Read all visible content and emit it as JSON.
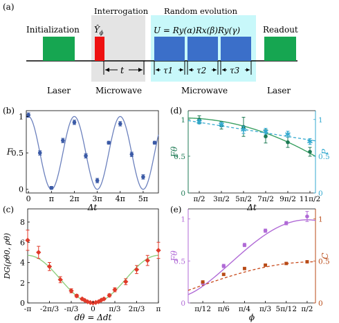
{
  "panel_a": {
    "label": "(a)",
    "blocks": {
      "initialization": "Initialization",
      "interrogation": "Interrogation",
      "random_evolution": "Random evolution",
      "readout": "Readout",
      "y_phi": "Ŷ",
      "y_phi_sub": "ϕ",
      "unitary": "U = R",
      "unitary_full": "U = Ry(α)Rx(β)Ry(γ)",
      "t": "t",
      "tau1": "τ1",
      "tau2": "τ2",
      "tau3": "τ3"
    },
    "bottom_labels": [
      "Laser",
      "Microwave",
      "Microwave",
      "Laser"
    ],
    "colors": {
      "green": "#16a651",
      "red": "#ee1111",
      "blue": "#3b6fc9",
      "cyan": "#c8f8fa",
      "gray": "#e4e4e4"
    }
  },
  "chart_data": [
    {
      "panel": "(b)",
      "type": "scatter",
      "ylabel": "F",
      "xlabel": "Δt",
      "x_ticks": [
        "0",
        "π",
        "2π",
        "3π",
        "4π",
        "5π"
      ],
      "y_ticks": [
        "0",
        "0.5",
        "1"
      ],
      "ylim": [
        -0.05,
        1.08
      ],
      "xlim": [
        -0.3,
        17.8
      ],
      "x": [
        0,
        1.5708,
        3.1416,
        4.7124,
        6.2832,
        7.854,
        9.4248,
        10.9956,
        12.5664,
        14.1372,
        15.708,
        17.2788
      ],
      "y": [
        1.02,
        0.5,
        0.02,
        0.67,
        0.92,
        0.46,
        0.12,
        0.64,
        0.9,
        0.48,
        0.17,
        0.64
      ],
      "err": [
        0.03,
        0.03,
        0.02,
        0.03,
        0.03,
        0.03,
        0.03,
        0.02,
        0.03,
        0.03,
        0.03,
        0.02
      ],
      "fit": "0.5+0.5cos(x)",
      "color": "#6b80bd"
    },
    {
      "panel": "(c)",
      "type": "scatter",
      "ylabel": "DG(ρθ0, ρθ)",
      "xlabel": "dθ = Δdt",
      "x_ticks": [
        "-π",
        "-2π/3",
        "-π/3",
        "0",
        "π/3",
        "2π/3",
        "π"
      ],
      "y_ticks": [
        "0",
        "2",
        "4",
        "6",
        "8"
      ],
      "ylim": [
        0,
        9.3
      ],
      "xlim": [
        -3.1416,
        3.1416
      ],
      "x": [
        -3.1416,
        -2.618,
        -2.0944,
        -1.5708,
        -1.0472,
        -0.7854,
        -0.5236,
        -0.3927,
        -0.2618,
        -0.1309,
        0,
        0.1309,
        0.2618,
        0.3927,
        0.5236,
        0.7854,
        1.0472,
        1.5708,
        2.0944,
        2.618,
        3.1416
      ],
      "y": [
        6.2,
        5.0,
        3.6,
        2.3,
        1.2,
        0.7,
        0.4,
        0.25,
        0.12,
        0.04,
        0.0,
        0.05,
        0.12,
        0.28,
        0.4,
        0.75,
        1.3,
        2.1,
        3.3,
        4.2,
        5.2
      ],
      "err": [
        1.0,
        0.6,
        0.4,
        0.3,
        0.2,
        0.15,
        0.1,
        0.08,
        0.06,
        0.05,
        0.03,
        0.05,
        0.06,
        0.08,
        0.1,
        0.15,
        0.2,
        0.3,
        0.4,
        0.5,
        0.8
      ],
      "fit": "2(1-cos(x))*2.35",
      "colors": {
        "points": "#e03a2a",
        "fit": "#8fcf7f"
      }
    },
    {
      "panel": "(d)",
      "type": "scatter",
      "ylabel_left": "Fθ",
      "ylabel_right": "P",
      "xlabel": "Δt",
      "x_ticks": [
        "π/2",
        "3π/2",
        "5π/2",
        "7π/2",
        "9π/2",
        "11π/2"
      ],
      "y_ticks_left": [
        "0",
        "0.5",
        "1"
      ],
      "y_ticks_right": [
        "0",
        "0.5",
        "1"
      ],
      "ylim": [
        0,
        1.12
      ],
      "x": [
        1,
        3,
        5,
        7,
        9,
        11
      ],
      "series": [
        {
          "name": "Fθ",
          "y": [
            1.0,
            0.92,
            0.9,
            0.77,
            0.69,
            0.56
          ],
          "err": [
            0.05,
            0.05,
            0.13,
            0.09,
            0.07,
            0.06
          ],
          "color": "#1d7a54"
        },
        {
          "name": "P",
          "y": [
            0.97,
            0.93,
            0.86,
            0.84,
            0.8,
            0.7
          ],
          "err": [
            0.03,
            0.03,
            0.05,
            0.04,
            0.04,
            0.04
          ],
          "color": "#33a9cf"
        }
      ]
    },
    {
      "panel": "(e)",
      "type": "scatter",
      "ylabel_left": "Fθ",
      "ylabel_right": "C",
      "xlabel": "ϕ",
      "x_ticks": [
        "π/12",
        "π/6",
        "π/4",
        "π/3",
        "5π/12",
        "π/2"
      ],
      "y_ticks_left": [
        "0",
        "0.5",
        "1"
      ],
      "y_ticks_right": [
        "0",
        "0.5",
        "1"
      ],
      "ylim": [
        0,
        1.12
      ],
      "x": [
        1,
        2,
        3,
        4,
        5,
        6
      ],
      "series": [
        {
          "name": "Fθ",
          "y": [
            0.24,
            0.44,
            0.69,
            0.86,
            0.95,
            1.03
          ],
          "err": [
            0.02,
            0.02,
            0.02,
            0.02,
            0.02,
            0.06
          ],
          "color": "#b06ad6"
        },
        {
          "name": "C",
          "y": [
            0.25,
            0.34,
            0.41,
            0.45,
            0.47,
            0.49
          ],
          "err": [
            0.01,
            0.01,
            0.01,
            0.01,
            0.01,
            0.01
          ],
          "color": "#b84a16"
        }
      ]
    }
  ],
  "labels": {
    "b": "(b)",
    "c": "(c)",
    "d": "(d)",
    "e": "(e)"
  }
}
